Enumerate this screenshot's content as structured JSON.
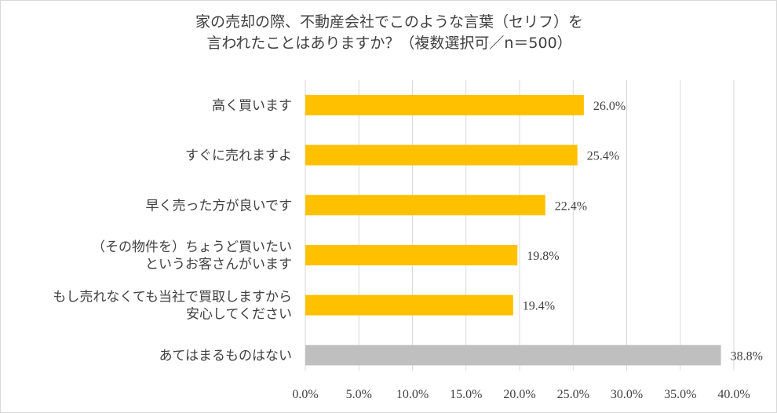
{
  "chart_data": {
    "type": "bar",
    "orientation": "horizontal",
    "title_lines": [
      "家の売却の際、不動産会社でこのような言葉（セリフ）を",
      "言われたことはありますか？（複数選択可／n＝500）"
    ],
    "categories": [
      [
        "高く買います"
      ],
      [
        "すぐに売れますよ"
      ],
      [
        "早く売った方が良いです"
      ],
      [
        "（その物件を）ちょうど買いたい",
        "というお客さんがいます"
      ],
      [
        "もし売れなくても当社で買取しますから",
        "安心してください"
      ],
      [
        "あてはまるものはない"
      ]
    ],
    "values": [
      26.0,
      25.4,
      22.4,
      19.8,
      19.4,
      38.8
    ],
    "value_labels": [
      "26.0%",
      "25.4%",
      "22.4%",
      "19.8%",
      "19.4%",
      "38.8%"
    ],
    "xlim": [
      0,
      40
    ],
    "xticks": [
      0,
      5,
      10,
      15,
      20,
      25,
      30,
      35,
      40
    ],
    "xtick_labels": [
      "0.0%",
      "5.0%",
      "10.0%",
      "15.0%",
      "20.0%",
      "25.0%",
      "30.0%",
      "35.0%",
      "40.0%"
    ],
    "grid": "vertical",
    "legend": "none",
    "colors": {
      "bar": "#ffc000",
      "bar_last": "#bfbfbf",
      "grid": "#d9d9d9",
      "text": "#404040"
    }
  }
}
